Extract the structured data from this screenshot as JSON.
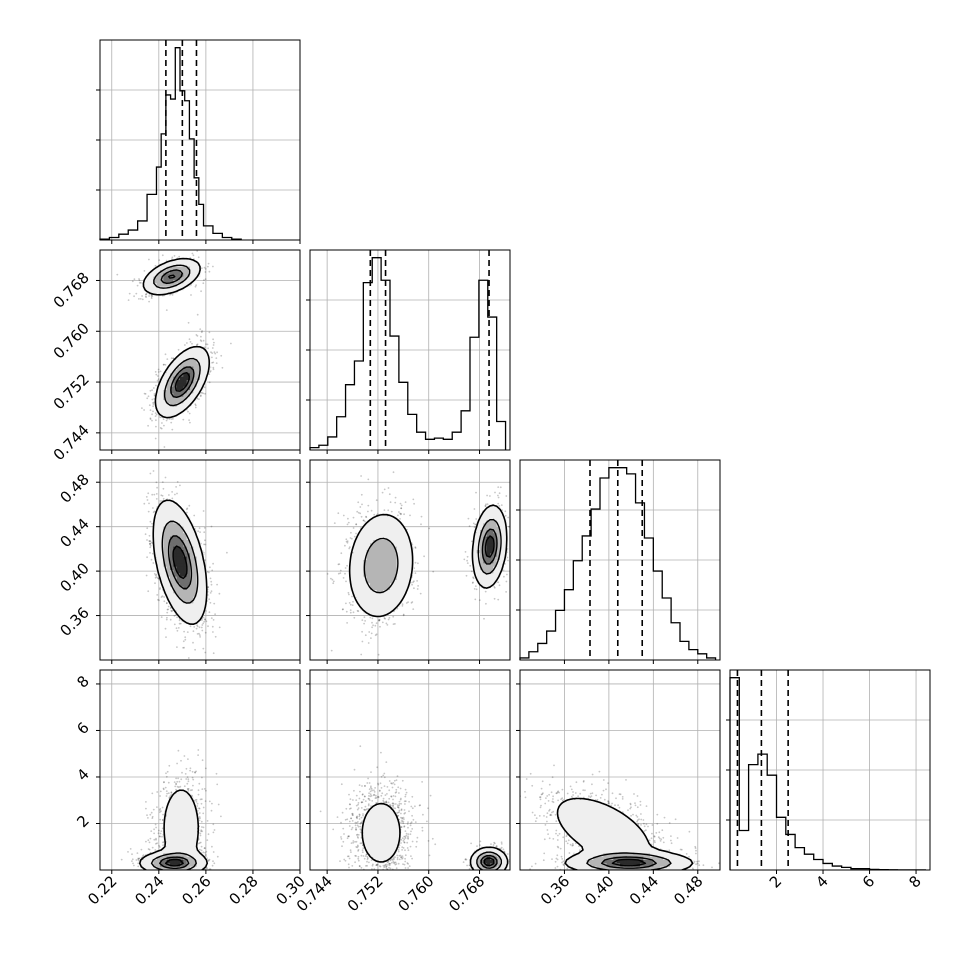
{
  "chart_data": {
    "type": "corner",
    "title": "",
    "variables": [
      {
        "label": "",
        "range": [
          0.215,
          0.3
        ],
        "ticks": [
          0.22,
          0.24,
          0.26,
          0.28,
          0.3
        ],
        "tick_labels": [
          "0.22",
          "0.24",
          "0.26",
          "0.28",
          "0.30"
        ],
        "quantiles": [
          0.243,
          0.25,
          0.256
        ],
        "histogram": {
          "bin_edges": [
            0.215,
            0.219,
            0.223,
            0.227,
            0.231,
            0.235,
            0.239,
            0.241,
            0.243,
            0.245,
            0.247,
            0.249,
            0.251,
            0.253,
            0.255,
            0.257,
            0.259,
            0.263,
            0.267,
            0.271,
            0.275
          ],
          "counts": [
            1,
            3,
            7,
            12,
            23,
            55,
            88,
            128,
            175,
            170,
            232,
            180,
            168,
            122,
            75,
            43,
            17,
            8,
            3,
            1
          ]
        }
      },
      {
        "label": "",
        "range": [
          0.7413,
          0.7728
        ],
        "ticks": [
          0.744,
          0.752,
          0.76,
          0.768
        ],
        "tick_labels": [
          "0.744",
          "0.752",
          "0.760",
          "0.768"
        ],
        "quantiles": [
          0.7508,
          0.7532,
          0.7695
        ],
        "histogram": {
          "bin_edges": [
            0.7413,
            0.7427,
            0.7441,
            0.7455,
            0.7469,
            0.7483,
            0.7497,
            0.7511,
            0.7525,
            0.7539,
            0.7553,
            0.7567,
            0.7581,
            0.7595,
            0.7609,
            0.7623,
            0.7637,
            0.7651,
            0.7665,
            0.7679,
            0.7693,
            0.7707,
            0.7721
          ],
          "counts": [
            2,
            4,
            11,
            28,
            55,
            75,
            141,
            162,
            143,
            96,
            57,
            30,
            15,
            9,
            10,
            9,
            15,
            33,
            95,
            143,
            112,
            24
          ]
        }
      },
      {
        "label": "",
        "range": [
          0.32,
          0.5
        ],
        "ticks": [
          0.36,
          0.4,
          0.44,
          0.48
        ],
        "tick_labels": [
          "0.36",
          "0.40",
          "0.44",
          "0.48"
        ],
        "quantiles": [
          0.383,
          0.408,
          0.43
        ],
        "histogram": {
          "bin_edges": [
            0.32,
            0.328,
            0.336,
            0.344,
            0.352,
            0.36,
            0.368,
            0.376,
            0.384,
            0.392,
            0.4,
            0.408,
            0.416,
            0.424,
            0.432,
            0.44,
            0.448,
            0.456,
            0.464,
            0.472,
            0.48,
            0.488,
            0.496
          ],
          "counts": [
            1,
            4,
            8,
            14,
            24,
            34,
            48,
            60,
            73,
            88,
            93,
            93,
            90,
            76,
            59,
            43,
            30,
            18,
            9,
            5,
            3,
            1
          ]
        }
      },
      {
        "label": "",
        "range": [
          0.0,
          8.6
        ],
        "ticks": [
          2,
          4,
          6,
          8
        ],
        "tick_labels": [
          "2",
          "4",
          "6",
          "8"
        ],
        "quantiles": [
          0.32,
          1.35,
          2.5
        ],
        "histogram": {
          "bin_edges": [
            0.0,
            0.4,
            0.8,
            1.2,
            1.6,
            2.0,
            2.4,
            2.8,
            3.2,
            3.6,
            4.0,
            4.4,
            4.8,
            5.2,
            5.6,
            6.0,
            6.4,
            6.8,
            7.2,
            7.6,
            8.0,
            8.4
          ],
          "counts": [
            146,
            30,
            80,
            88,
            72,
            40,
            27,
            17,
            12,
            8,
            5,
            3,
            2,
            1,
            1,
            0.5,
            0.3,
            0.2,
            0.1,
            0.1,
            0.1
          ]
        }
      }
    ],
    "pairs": [
      {
        "x": 0,
        "y": 1,
        "modes": [
          {
            "cx": 0.2455,
            "cy": 0.7686,
            "sx": 0.006,
            "sy": 0.0014,
            "rho": 0.45,
            "weight": 0.35
          },
          {
            "cx": 0.25,
            "cy": 0.752,
            "sx": 0.0055,
            "sy": 0.0027,
            "rho": 0.55,
            "weight": 0.65
          }
        ]
      },
      {
        "x": 0,
        "y": 2,
        "modes": [
          {
            "cx": 0.249,
            "cy": 0.408,
            "sx": 0.0055,
            "sy": 0.027,
            "rho": -0.45,
            "weight": 1.0
          }
        ]
      },
      {
        "x": 1,
        "y": 2,
        "modes": [
          {
            "cx": 0.7525,
            "cy": 0.405,
            "sx": 0.0027,
            "sy": 0.025,
            "rho": 0.1,
            "weight": 0.65
          },
          {
            "cx": 0.7696,
            "cy": 0.422,
            "sx": 0.0013,
            "sy": 0.018,
            "rho": 0.2,
            "weight": 0.35
          }
        ]
      },
      {
        "x": 0,
        "y": 3,
        "modes": [
          {
            "cx": 0.2495,
            "cy": 1.8,
            "sx": 0.0053,
            "sy": 1.2,
            "rho": 0.0,
            "weight": 0.55
          },
          {
            "cx": 0.246,
            "cy": 0.3,
            "sx": 0.007,
            "sy": 0.25,
            "rho": 0.0,
            "weight": 0.45
          }
        ]
      },
      {
        "x": 1,
        "y": 3,
        "modes": [
          {
            "cx": 0.7525,
            "cy": 1.6,
            "sx": 0.0026,
            "sy": 1.1,
            "rho": 0.0,
            "weight": 0.6
          },
          {
            "cx": 0.7695,
            "cy": 0.35,
            "sx": 0.0014,
            "sy": 0.3,
            "rho": 0.0,
            "weight": 0.4
          }
        ]
      },
      {
        "x": 2,
        "y": 3,
        "modes": [
          {
            "cx": 0.395,
            "cy": 1.7,
            "sx": 0.03,
            "sy": 1.0,
            "rho": -0.55,
            "weight": 0.55
          },
          {
            "cx": 0.418,
            "cy": 0.3,
            "sx": 0.028,
            "sy": 0.25,
            "rho": 0.0,
            "weight": 0.45
          }
        ]
      }
    ],
    "y_axis_ticks": {
      "1": {
        "ticks": [
          0.744,
          0.752,
          0.76,
          0.768
        ],
        "tick_labels": [
          "0.744",
          "0.752",
          "0.760",
          "0.768"
        ]
      },
      "2": {
        "ticks": [
          0.36,
          0.4,
          0.44,
          0.48
        ],
        "tick_labels": [
          "0.36",
          "0.40",
          "0.44",
          "0.48"
        ]
      },
      "3": {
        "ticks": [
          2,
          4,
          6,
          8
        ],
        "tick_labels": [
          "2",
          "4",
          "6",
          "8"
        ]
      }
    },
    "contour_levels": [
      0.118,
      0.393,
      0.675,
      0.865
    ],
    "grid": true,
    "colors": {
      "line": "#000000",
      "grid": "#b0b0b0",
      "scatter": "#000000",
      "background": "#ffffff"
    }
  }
}
